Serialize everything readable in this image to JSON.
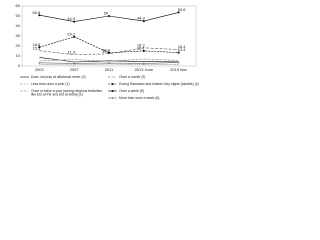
{
  "chart_data": {
    "type": "line",
    "categories": [
      "2002",
      "2007",
      "2011",
      "2013 June",
      "2015 Nov"
    ],
    "ylim": [
      0,
      60
    ],
    "yticks": [
      0,
      10,
      20,
      30,
      40,
      50,
      60
    ],
    "series": [
      {
        "name": "Does not pray at all/almost never (0)",
        "color": "#000000",
        "dash": "none",
        "marker": "none",
        "values": [
          8.6,
          4.0,
          5.2,
          4.4,
          4.1
        ]
      },
      {
        "name": "Less than once a year (1)",
        "color": "#555555",
        "dash": "1,1",
        "marker": "none",
        "values": [
          1.5,
          1.1,
          2.0,
          1.3,
          1.7
        ]
      },
      {
        "name": "Once or twice a year (during religious festivities like Eid al-Fitr and Eid al-Adha) (2)",
        "color": "#888888",
        "dash": "3,1",
        "marker": "none",
        "values": [
          5.0,
          6.5,
          4.8,
          7.0,
          5.6
        ]
      },
      {
        "name": "Once a month (3)",
        "color": "#333333",
        "dash": "2,1,0.5,1",
        "marker": "none",
        "values": [
          15.3,
          11.3,
          12.2,
          18.2,
          16.4
        ]
      },
      {
        "name": "During Ramadan and Islamic holy nights (kandils) (4)",
        "color": "#000000",
        "dash": "2,1",
        "marker": "square",
        "values": [
          18.8,
          29.2,
          13.2,
          15.1,
          13.4
        ]
      },
      {
        "name": "Once a week (5)",
        "color": "#000000",
        "dash": "none",
        "marker": "circle",
        "values": [
          50.8,
          44.4,
          50.0,
          44.9,
          53.6
        ]
      },
      {
        "name": "More than once a week (6)",
        "color": "#666666",
        "dash": "none",
        "marker": "triangle",
        "values": [
          3.2,
          2.6,
          3.0,
          2.4,
          3.5
        ]
      }
    ]
  }
}
